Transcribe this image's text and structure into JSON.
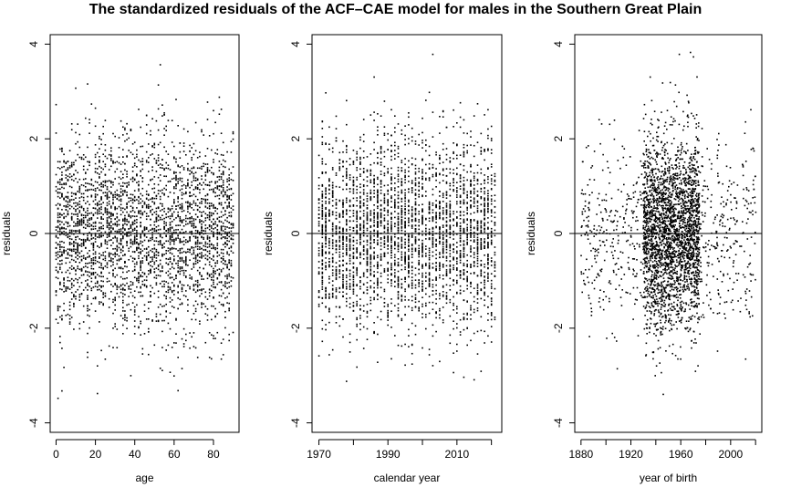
{
  "page_title": "The standardized residuals of the ACF–CAE model for males in the Southern Great Plain",
  "colors": {
    "points": "#000000",
    "frame": "#000000",
    "background": "#ffffff"
  },
  "chart_data": [
    {
      "type": "scatter",
      "title": "The standardized residuals of the ACF–CAE model for males in the Southern Great Plain",
      "xlabel": "age",
      "ylabel": "residuals",
      "xlim": [
        -3,
        93
      ],
      "ylim": [
        -4.2,
        4.2
      ],
      "x_ticks": [
        0,
        20,
        40,
        60,
        80
      ],
      "x_tick_labels": [
        "0",
        "20",
        "40",
        "60",
        "80"
      ],
      "y_ticks": [
        -4,
        -2,
        0,
        2,
        4
      ],
      "y_tick_labels": [
        "-4",
        "-2",
        "0",
        "2",
        "4"
      ],
      "reference_line_y": 0,
      "grid": false,
      "point_cloud": {
        "x_range": [
          0,
          90
        ],
        "x_values": "integer ages 0-90",
        "y_center": 0,
        "y_spread_sd": 1.0,
        "y_extremes": [
          -4.0,
          3.9
        ]
      }
    },
    {
      "type": "scatter",
      "title": "",
      "xlabel": "calendar year",
      "ylabel": "residuals",
      "xlim": [
        1968,
        2023
      ],
      "ylim": [
        -4.2,
        4.2
      ],
      "x_ticks": [
        1970,
        1990,
        2010
      ],
      "x_tick_labels": [
        "1970",
        "1990",
        "2010"
      ],
      "x_minor_ticks": [
        1980,
        2000,
        2020
      ],
      "y_ticks": [
        -4,
        -2,
        0,
        2,
        4
      ],
      "y_tick_labels": [
        "-4",
        "-2",
        "0",
        "2",
        "4"
      ],
      "reference_line_y": 0,
      "grid": false,
      "point_cloud": {
        "x_range": [
          1970,
          2021
        ],
        "x_values": "integer years 1970-2021",
        "y_center": 0,
        "y_spread_sd": 1.0,
        "y_extremes": [
          -4.0,
          3.9
        ]
      }
    },
    {
      "type": "scatter",
      "title": "",
      "xlabel": "year of birth",
      "ylabel": "residuals",
      "xlim": [
        1875,
        2025
      ],
      "ylim": [
        -4.2,
        4.2
      ],
      "x_ticks": [
        1880,
        1920,
        1960,
        2000
      ],
      "x_tick_labels": [
        "1880",
        "1920",
        "1960",
        "2000"
      ],
      "x_minor_ticks": [
        1900,
        1940,
        1980,
        2020
      ],
      "y_ticks": [
        -4,
        -2,
        0,
        2,
        4
      ],
      "y_tick_labels": [
        "-4",
        "-2",
        "0",
        "2",
        "4"
      ],
      "reference_line_y": 0,
      "grid": false,
      "point_cloud": {
        "x_range": [
          1880,
          2021
        ],
        "densest_x": [
          1930,
          1975
        ],
        "y_center": 0,
        "y_spread_sd": 1.0,
        "y_extremes": [
          -4.0,
          3.9
        ]
      }
    }
  ]
}
